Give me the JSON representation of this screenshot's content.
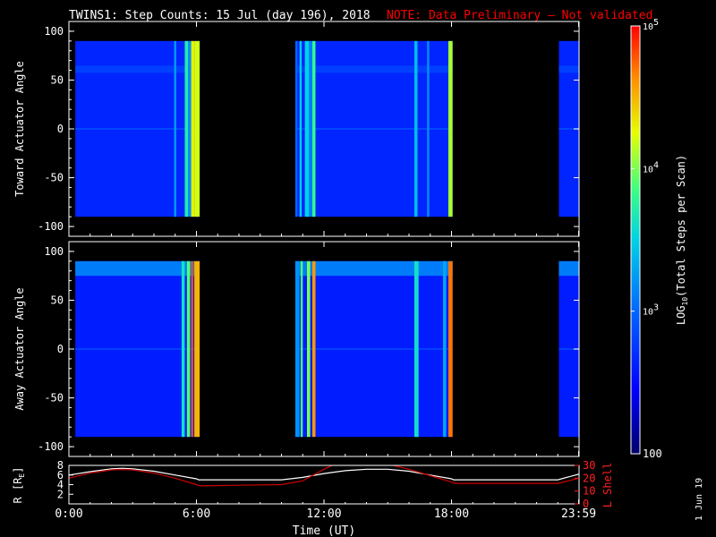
{
  "title": {
    "main": "TWINS1: Step Counts: 15 Jul (day 196), 2018",
    "note": "NOTE: Data Preliminary — Not validated"
  },
  "footer_date": "1 Jun 19",
  "colors": {
    "note": "#ff0000",
    "axis": "#ffffff",
    "l_shell": "#cc0000",
    "r_line": "#ffffff"
  },
  "colorbar": {
    "label_prefix": "LOG",
    "label_sub": "10",
    "label_suffix": "(Total Steps per Scan)",
    "tick_labels": [
      {
        "base": "10",
        "exp": "5"
      },
      {
        "base": "10",
        "exp": "4"
      },
      {
        "base": "10",
        "exp": "3"
      },
      {
        "base": "100",
        "exp": ""
      }
    ],
    "log_range": [
      2,
      5
    ],
    "scale": "log"
  },
  "chart_data": [
    {
      "type": "heatmap",
      "name": "toward",
      "ylabel": "Toward Actuator Angle",
      "xlim": [
        0,
        24
      ],
      "ylim": [
        -110,
        110
      ],
      "yticks": [
        "100",
        "50",
        "0",
        "-50",
        "-100"
      ],
      "ytick_values": [
        100,
        50,
        0,
        -50,
        -100
      ],
      "angle_range": [
        -90,
        90
      ],
      "data_intervals_hours": [
        [
          0.3,
          6.15
        ],
        [
          10.65,
          18.05
        ],
        [
          23.05,
          23.98
        ]
      ],
      "base_log": 2.65,
      "bright_bands": [
        {
          "hours": [
            4.95,
            5.05
          ],
          "log": 3.25
        },
        {
          "hours": [
            5.45,
            5.6
          ],
          "log": 3.7
        },
        {
          "hours": [
            5.6,
            5.75
          ],
          "log": 3.2
        },
        {
          "hours": [
            5.75,
            5.9
          ],
          "log": 4.3
        },
        {
          "hours": [
            5.9,
            6.15
          ],
          "log": 4.2
        },
        {
          "hours": [
            10.65,
            10.75
          ],
          "log": 3.0
        },
        {
          "hours": [
            10.85,
            10.95
          ],
          "log": 3.5
        },
        {
          "hours": [
            11.1,
            11.3
          ],
          "log": 3.5
        },
        {
          "hours": [
            11.3,
            11.45
          ],
          "log": 3.1
        },
        {
          "hours": [
            11.45,
            11.6
          ],
          "log": 3.8
        },
        {
          "hours": [
            16.25,
            16.4
          ],
          "log": 3.4
        },
        {
          "hours": [
            16.85,
            16.95
          ],
          "log": 3.2
        },
        {
          "hours": [
            17.85,
            18.05
          ],
          "log": 4.1
        }
      ]
    },
    {
      "type": "heatmap",
      "name": "away",
      "ylabel": "Away Actuator Angle",
      "xlim": [
        0,
        24
      ],
      "ylim": [
        -110,
        110
      ],
      "yticks": [
        "100",
        "50",
        "0",
        "-50",
        "-100"
      ],
      "ytick_values": [
        100,
        50,
        0,
        -50,
        -100
      ],
      "angle_range": [
        -90,
        90
      ],
      "data_intervals_hours": [
        [
          0.3,
          6.15
        ],
        [
          10.65,
          18.05
        ],
        [
          23.05,
          23.98
        ]
      ],
      "base_log": 2.6,
      "bright_bands": [
        {
          "hours": [
            5.3,
            5.45
          ],
          "log": 3.6
        },
        {
          "hours": [
            5.55,
            5.7
          ],
          "log": 3.9
        },
        {
          "hours": [
            5.75,
            5.85
          ],
          "log": 4.8
        },
        {
          "hours": [
            5.9,
            6.15
          ],
          "log": 4.5
        },
        {
          "hours": [
            10.65,
            10.85
          ],
          "log": 3.2
        },
        {
          "hours": [
            10.9,
            11.0
          ],
          "log": 3.9
        },
        {
          "hours": [
            11.2,
            11.35
          ],
          "log": 4.0
        },
        {
          "hours": [
            11.45,
            11.6
          ],
          "log": 4.6
        },
        {
          "hours": [
            16.25,
            16.45
          ],
          "log": 3.6
        },
        {
          "hours": [
            17.6,
            17.75
          ],
          "log": 3.3
        },
        {
          "hours": [
            17.85,
            18.05
          ],
          "log": 4.7
        }
      ]
    },
    {
      "type": "line",
      "name": "orbit",
      "xlabel": "Time (UT)",
      "xticks": [
        "0:00",
        "6:00",
        "12:00",
        "18:00",
        "23:59"
      ],
      "xtick_values": [
        0,
        6,
        12,
        18,
        23.98
      ],
      "xlim": [
        0,
        24
      ],
      "y_left": {
        "label": "R [R",
        "label_sub": "E",
        "label_end": "]",
        "ticks": [
          "8",
          "6",
          "4",
          "2"
        ],
        "tick_values": [
          8,
          6,
          4,
          2
        ],
        "ylim": [
          0,
          8
        ]
      },
      "y_right": {
        "label": "L Shell",
        "ticks": [
          "30",
          "20",
          "10",
          "0"
        ],
        "tick_values": [
          30,
          20,
          10,
          0
        ],
        "ylim": [
          0,
          30
        ]
      },
      "series": [
        {
          "axis": "left",
          "x": [
            0,
            1,
            2,
            2.5,
            3,
            4,
            5,
            6,
            6.1,
            8,
            10,
            11,
            12,
            13,
            14,
            15,
            16,
            17,
            18,
            18.1,
            20,
            22,
            23,
            24
          ],
          "y": [
            6.0,
            6.7,
            7.3,
            7.4,
            7.3,
            6.8,
            6.0,
            5.2,
            5.0,
            5.0,
            5.0,
            5.5,
            6.3,
            6.9,
            7.2,
            7.2,
            6.8,
            6.0,
            5.2,
            5.0,
            5.0,
            5.0,
            5.0,
            6.2
          ]
        },
        {
          "axis": "right",
          "x": [
            0,
            1,
            2,
            2.5,
            3,
            4,
            5,
            6,
            6.2,
            8,
            10,
            11,
            12,
            12.5,
            13,
            14,
            15,
            16,
            17,
            18,
            18.2,
            20,
            22,
            23,
            24
          ],
          "y": [
            20,
            24,
            26.5,
            26.8,
            26.5,
            24,
            20,
            15,
            14,
            14.5,
            15,
            18,
            27,
            31,
            31,
            31,
            31,
            27,
            22,
            17,
            16,
            16,
            16,
            16,
            20
          ]
        }
      ]
    }
  ]
}
